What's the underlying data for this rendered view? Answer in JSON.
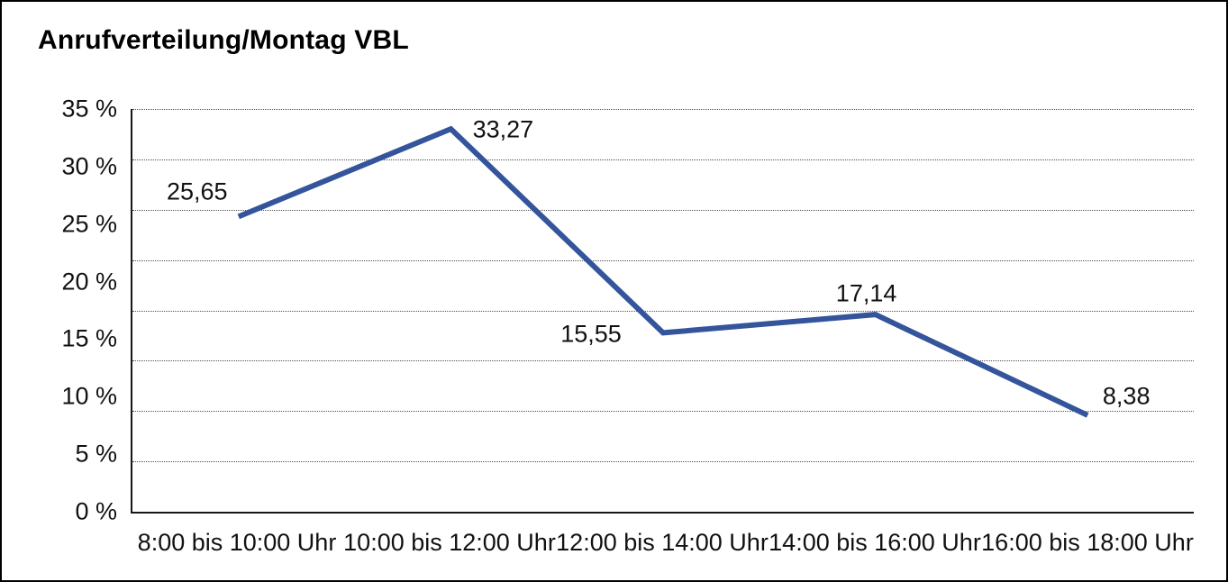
{
  "chart": {
    "title": "Anrufverteilung/Montag VBL"
  },
  "chart_data": {
    "type": "line",
    "title": "Anrufverteilung/Montag VBL",
    "categories": [
      "8:00 bis 10:00 Uhr",
      "10:00 bis 12:00 Uhr",
      "12:00 bis 14:00 Uhr",
      "14:00 bis 16:00 Uhr",
      "16:00 bis 18:00 Uhr"
    ],
    "values": [
      25.65,
      33.27,
      15.55,
      17.14,
      8.38
    ],
    "value_labels": [
      "25,65",
      "33,27",
      "15,55",
      "17,14",
      "8,38"
    ],
    "y_ticks": [
      35,
      30,
      25,
      20,
      15,
      10,
      5,
      0
    ],
    "y_tick_labels": [
      "35 %",
      "30 %",
      "25 %",
      "20 %",
      "15 %",
      "10 %",
      "5 %",
      "0 %"
    ],
    "ylim": [
      0,
      35
    ],
    "xlabel": "",
    "ylabel": "",
    "grid": "horizontal-dotted",
    "legend": "none",
    "line_color": "#34549B",
    "axis_color": "#161616",
    "gridline_color": "#4f4f4f"
  }
}
